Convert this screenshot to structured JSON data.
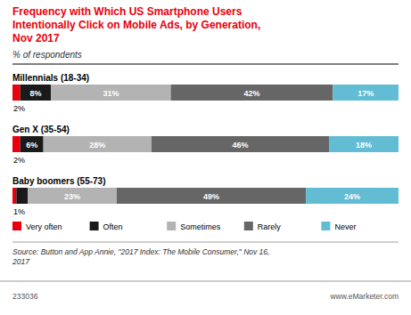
{
  "chart_data": {
    "type": "bar",
    "orientation": "horizontal",
    "stacked": true,
    "title": "Frequency with Which US Smartphone Users\nIntentionally Click on Mobile Ads, by Generation,\nNov 2017",
    "subtitle": "% of respondents",
    "categories": [
      "Millennials (18-34)",
      "Gen X (35-54)",
      "Baby boomers (55-73)"
    ],
    "series": [
      {
        "name": "Very often",
        "color": "#e8000d",
        "values": [
          2,
          2,
          1
        ],
        "value_labels": [
          "2%",
          "2%",
          "1%"
        ]
      },
      {
        "name": "Often",
        "color": "#1a1a1a",
        "values": [
          8,
          6,
          3
        ],
        "value_labels": [
          "8%",
          "6%",
          null
        ]
      },
      {
        "name": "Sometimes",
        "color": "#b3b3b3",
        "values": [
          31,
          28,
          23
        ],
        "value_labels": [
          "31%",
          "28%",
          "23%"
        ]
      },
      {
        "name": "Rarely",
        "color": "#666666",
        "values": [
          42,
          46,
          49
        ],
        "value_labels": [
          "42%",
          "46%",
          "49%"
        ]
      },
      {
        "name": "Never",
        "color": "#62bcd4",
        "values": [
          17,
          18,
          24
        ],
        "value_labels": [
          "17%",
          "18%",
          "24%"
        ]
      }
    ],
    "xlim": [
      0,
      100
    ],
    "tick_labels": false,
    "grid": false,
    "legend": "bottom",
    "data_labels": true,
    "annotations": [
      "Source: Button and App Annie, \"2017 Index: The Mobile Consumer,\" Nov 16,\n2017",
      "233036",
      "www.eMarketer.com"
    ]
  }
}
